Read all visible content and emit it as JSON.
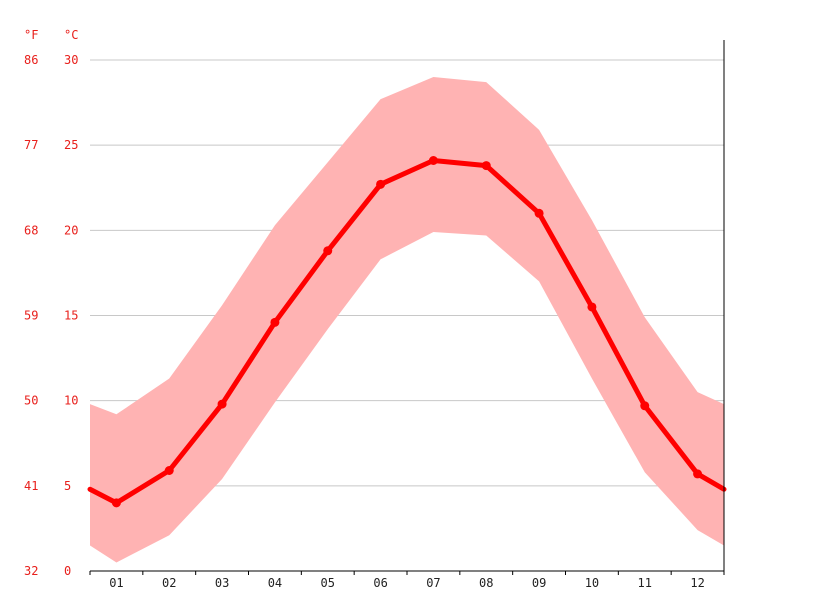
{
  "chart_data": {
    "type": "area",
    "axis_units": {
      "fahrenheit": "°F",
      "celsius": "°C"
    },
    "categories": [
      "01",
      "02",
      "03",
      "04",
      "05",
      "06",
      "07",
      "08",
      "09",
      "10",
      "11",
      "12"
    ],
    "series": [
      {
        "values": [
          4.0,
          5.9,
          9.8,
          14.6,
          18.8,
          22.7,
          24.1,
          23.8,
          21.0,
          15.5,
          9.7,
          5.7
        ]
      }
    ],
    "band": {
      "upper": [
        9.2,
        11.3,
        15.6,
        20.3,
        24.0,
        27.7,
        29.0,
        28.7,
        25.9,
        20.6,
        14.9,
        10.5
      ],
      "lower": [
        0.5,
        2.1,
        5.4,
        9.9,
        14.2,
        18.3,
        19.9,
        19.7,
        17.0,
        11.3,
        5.8,
        2.4
      ]
    },
    "edge_values": {
      "start": 4.8,
      "end": 4.8
    },
    "edge_band": {
      "upper_start": 9.8,
      "lower_start": 1.5,
      "upper_end": 9.8,
      "lower_end": 1.5
    },
    "y_celsius_ticks": [
      "0",
      "5",
      "10",
      "15",
      "20",
      "25",
      "30"
    ],
    "y_fahrenheit_ticks": [
      "32",
      "41",
      "50",
      "59",
      "68",
      "77",
      "86"
    ],
    "ylim": [
      0,
      30
    ],
    "grid": true,
    "colors": {
      "line": "#ff0000",
      "band": "#ffb3b3",
      "axis_labels": "#e8201c"
    }
  }
}
